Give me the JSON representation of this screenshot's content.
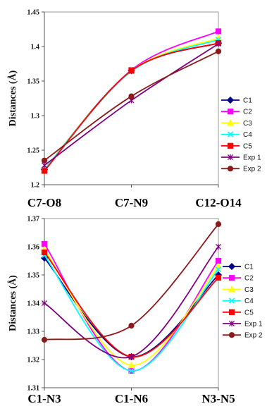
{
  "chart_data": [
    {
      "type": "line",
      "ylabel": "Distances (Å)",
      "ylim": [
        1.2,
        1.45
      ],
      "yticks": [
        "1.2",
        "1.25",
        "1.3",
        "1.35",
        "1.4",
        "1.45"
      ],
      "categories": [
        "C7-O8",
        "C7-N9",
        "C12-O14"
      ],
      "grid": false,
      "legend": "right",
      "series": [
        {
          "name": "C1",
          "values": [
            1.222,
            1.365,
            1.405
          ],
          "color": "#00008b",
          "marker": "diamond"
        },
        {
          "name": "C2",
          "values": [
            1.221,
            1.366,
            1.422
          ],
          "color": "#ff00ff",
          "marker": "square"
        },
        {
          "name": "C3",
          "values": [
            1.222,
            1.365,
            1.412
          ],
          "color": "#ffff00",
          "marker": "triangle"
        },
        {
          "name": "C4",
          "values": [
            1.222,
            1.364,
            1.41
          ],
          "color": "#00ffff",
          "marker": "x"
        },
        {
          "name": "C5",
          "values": [
            1.22,
            1.365,
            1.405
          ],
          "color": "#ff0000",
          "marker": "square"
        },
        {
          "name": "Exp 1",
          "values": [
            1.228,
            1.322,
            1.404
          ],
          "color": "#800080",
          "marker": "star"
        },
        {
          "name": "Exp 2",
          "values": [
            1.235,
            1.328,
            1.393
          ],
          "color": "#8b1a1a",
          "marker": "circle"
        }
      ]
    },
    {
      "type": "line",
      "ylabel": "Distances (Å)",
      "ylim": [
        1.31,
        1.37
      ],
      "yticks": [
        "1.31",
        "1.32",
        "1.33",
        "1.34",
        "1.35",
        "1.36",
        "1.37"
      ],
      "categories": [
        "C1-N3",
        "C1-N6",
        "N3-N5"
      ],
      "grid": false,
      "legend": "right",
      "series": [
        {
          "name": "C1",
          "values": [
            1.356,
            1.321,
            1.35
          ],
          "color": "#00008b",
          "marker": "diamond"
        },
        {
          "name": "C2",
          "values": [
            1.361,
            1.316,
            1.355
          ],
          "color": "#ff00ff",
          "marker": "square"
        },
        {
          "name": "C3",
          "values": [
            1.359,
            1.318,
            1.353
          ],
          "color": "#ffff00",
          "marker": "triangle"
        },
        {
          "name": "C4",
          "values": [
            1.357,
            1.316,
            1.352
          ],
          "color": "#00ffff",
          "marker": "x"
        },
        {
          "name": "C5",
          "values": [
            1.358,
            1.321,
            1.349
          ],
          "color": "#ff0000",
          "marker": "square"
        },
        {
          "name": "Exp 1",
          "values": [
            1.34,
            1.321,
            1.36
          ],
          "color": "#800080",
          "marker": "star"
        },
        {
          "name": "Exp 2",
          "values": [
            1.327,
            1.332,
            1.368
          ],
          "color": "#8b1a1a",
          "marker": "circle"
        }
      ]
    }
  ]
}
